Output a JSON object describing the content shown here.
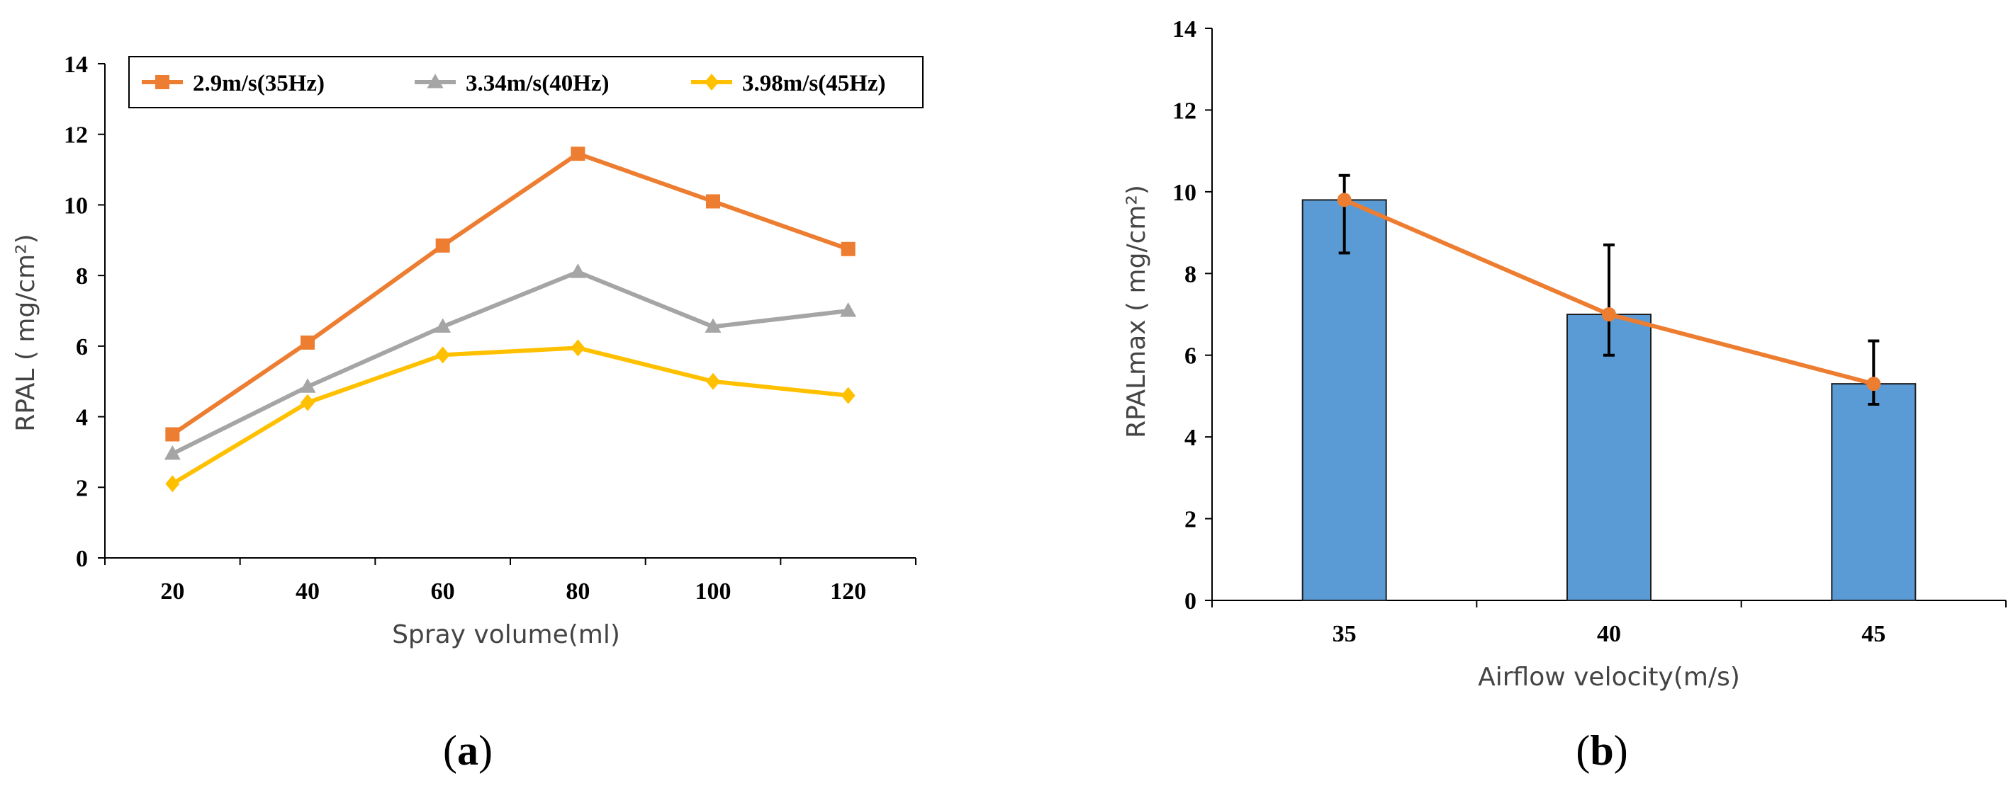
{
  "chart_data": [
    {
      "panel": "a",
      "panel_label_open": "(",
      "panel_label_letter": "a",
      "panel_label_close": ")",
      "type": "line",
      "title": "",
      "xlabel": "Spray volume(ml)",
      "ylabel": "RPAL ( mg/cm²)",
      "x": [
        20,
        40,
        60,
        80,
        100,
        120
      ],
      "xticks": [
        "20",
        "40",
        "60",
        "80",
        "100",
        "120"
      ],
      "xlim": [
        10,
        130
      ],
      "ylim": [
        0,
        14
      ],
      "yticks": [
        "0",
        "2",
        "4",
        "6",
        "8",
        "10",
        "12",
        "14"
      ],
      "grid": false,
      "legend_position": "top",
      "series": [
        {
          "name": "2.9m/s(35Hz)",
          "marker": "square",
          "color": "#ED7D31",
          "values": [
            3.5,
            6.1,
            8.85,
            11.45,
            10.1,
            8.75
          ]
        },
        {
          "name": "3.34m/s(40Hz)",
          "marker": "triangle",
          "color": "#A5A5A5",
          "values": [
            2.95,
            4.85,
            6.55,
            8.1,
            6.55,
            7.0
          ]
        },
        {
          "name": "3.98m/s(45Hz)",
          "marker": "diamond",
          "color": "#FFC000",
          "values": [
            2.1,
            4.4,
            5.75,
            5.95,
            5.0,
            4.6
          ]
        }
      ]
    },
    {
      "panel": "b",
      "panel_label_open": "(",
      "panel_label_letter": "b",
      "panel_label_close": ")",
      "type": "bar",
      "title": "",
      "xlabel": "Airflow velocity(m/s)",
      "ylabel": "RPALmax ( mg/cm²)",
      "categories": [
        "35",
        "40",
        "45"
      ],
      "ylim": [
        0,
        14
      ],
      "yticks": [
        "0",
        "2",
        "4",
        "6",
        "8",
        "10",
        "12",
        "14"
      ],
      "grid": false,
      "bar_color": "#5B9BD5",
      "line_color": "#ED7D31",
      "values": [
        9.8,
        7.0,
        5.3
      ],
      "error_low": [
        8.5,
        6.0,
        4.8
      ],
      "error_high": [
        10.4,
        8.7,
        6.35
      ]
    }
  ]
}
